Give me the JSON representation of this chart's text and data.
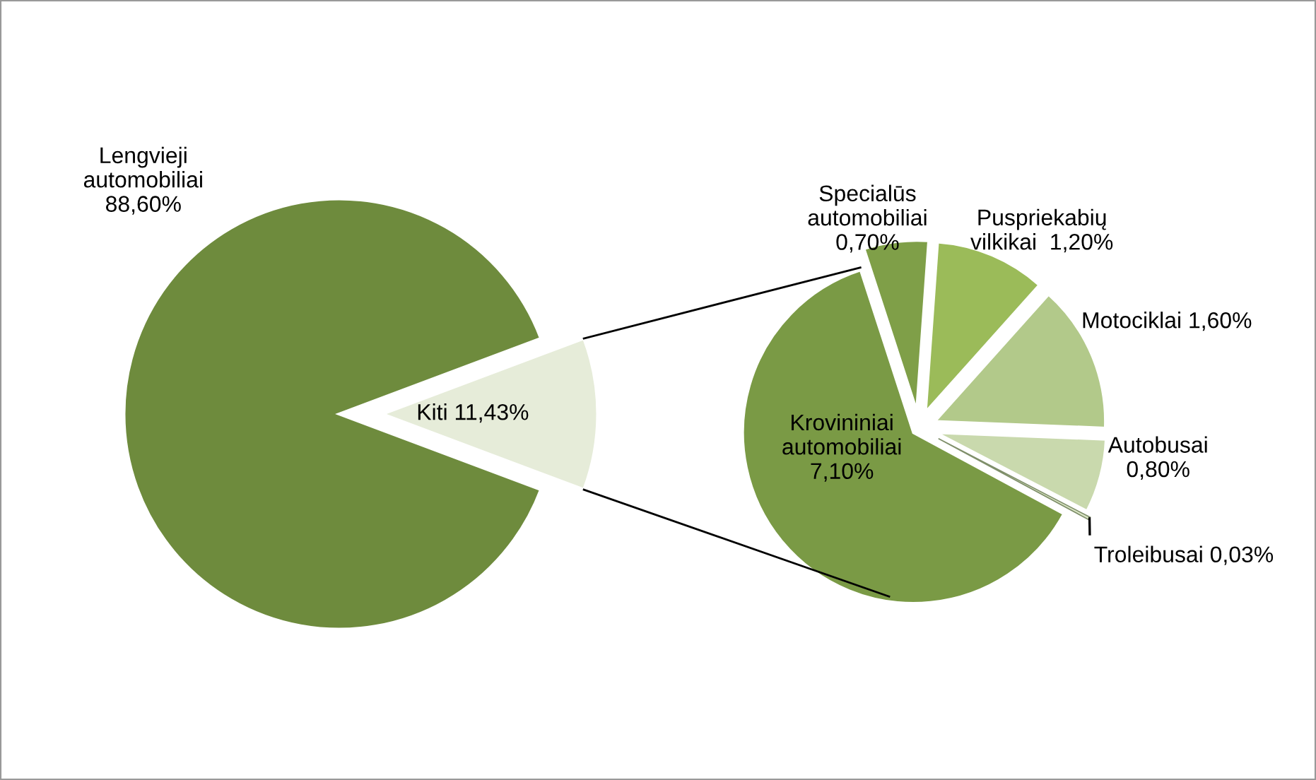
{
  "chart_data": [
    {
      "type": "pie",
      "categories": [
        "Kiti",
        "Lengvieji\nautomobiliai"
      ],
      "values": [
        11.43,
        88.6
      ],
      "colors": [
        "#e6ecd9",
        "#6e8b3d"
      ],
      "value_labels": [
        "11,43%",
        "88,60%"
      ]
    },
    {
      "type": "pie",
      "categories": [
        "Specialūs\nautomobiliai",
        "Puspriekabių\nvilkikai ",
        "Motociklai",
        "Autobusai",
        "Troleibusai",
        "Krovininiai\nautomobiliai"
      ],
      "values": [
        0.7,
        1.2,
        1.6,
        0.8,
        0.03,
        7.1
      ],
      "colors": [
        "#7f9f48",
        "#9bbb59",
        "#b2c98a",
        "#c9d9ad",
        "#dbe6c6",
        "#7a9a45"
      ],
      "value_labels": [
        "0,70%",
        "1,20%",
        "1,60%",
        "0,80%",
        "0,03%",
        "7,10%"
      ]
    }
  ]
}
